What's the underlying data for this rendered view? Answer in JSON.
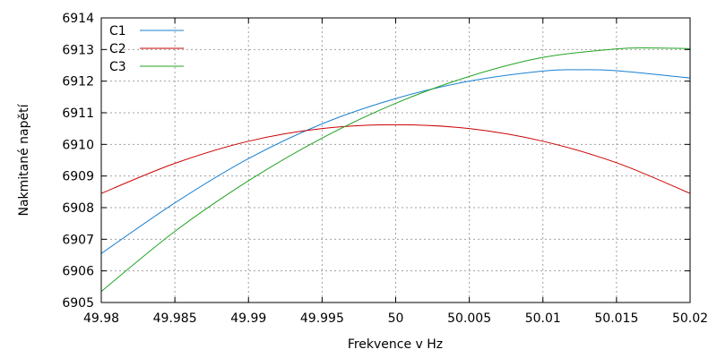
{
  "chart_data": {
    "type": "line",
    "title": "",
    "xlabel": "Frekvence v Hz",
    "ylabel": "Nakmitané napětí",
    "xlim": [
      49.98,
      50.02
    ],
    "ylim": [
      6905,
      6914
    ],
    "x_ticks": [
      "49.98",
      "49.985",
      "49.99",
      "49.995",
      "50",
      "50.005",
      "50.01",
      "50.015",
      "50.02"
    ],
    "y_ticks": [
      "6905",
      "6906",
      "6907",
      "6908",
      "6909",
      "6910",
      "6911",
      "6912",
      "6913",
      "6914"
    ],
    "grid": true,
    "legend_position": "top-left",
    "series": [
      {
        "name": "C1",
        "color": "#1a7fd0",
        "x": [
          49.98,
          49.985,
          49.99,
          49.995,
          50.0,
          50.005,
          50.01,
          50.0125,
          50.015,
          50.02
        ],
        "y": [
          6906.55,
          6908.15,
          6909.55,
          6910.65,
          6911.45,
          6912.0,
          6912.32,
          6912.36,
          6912.33,
          6912.1
        ]
      },
      {
        "name": "C2",
        "color": "#cc0000",
        "x": [
          49.98,
          49.985,
          49.99,
          49.995,
          50.0,
          50.005,
          50.01,
          50.015,
          50.02
        ],
        "y": [
          6908.45,
          6909.4,
          6910.1,
          6910.5,
          6910.62,
          6910.5,
          6910.1,
          6909.42,
          6908.45
        ]
      },
      {
        "name": "C3",
        "color": "#22a322",
        "x": [
          49.98,
          49.985,
          49.99,
          49.995,
          50.0,
          50.005,
          50.01,
          50.015,
          50.0175,
          50.02
        ],
        "y": [
          6905.35,
          6907.25,
          6908.85,
          6910.2,
          6911.3,
          6912.15,
          6912.75,
          6913.02,
          6913.05,
          6913.03
        ]
      }
    ]
  }
}
